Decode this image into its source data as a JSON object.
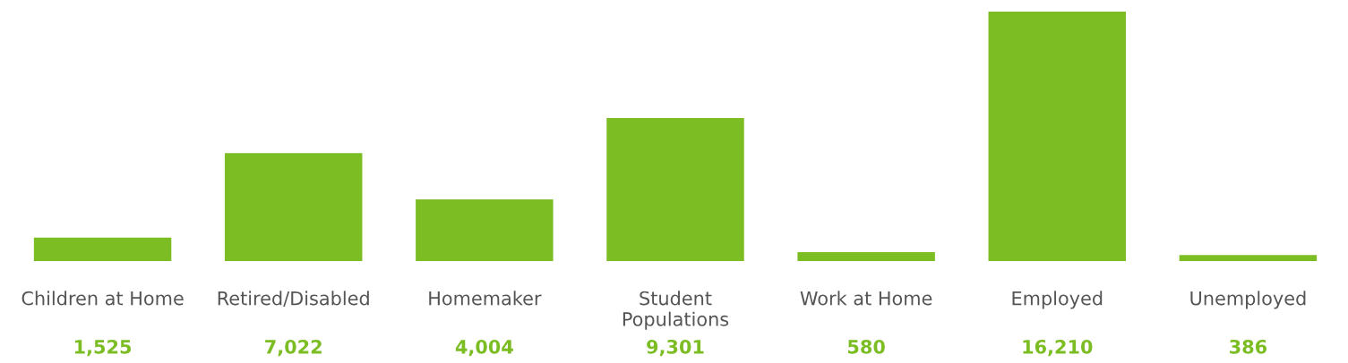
{
  "chart_data": {
    "type": "bar",
    "categories": [
      "Children at Home",
      "Retired/Disabled",
      "Homemaker",
      "Student\nPopulations",
      "Work at Home",
      "Employed",
      "Unemployed"
    ],
    "values": [
      1525,
      7022,
      4004,
      9301,
      580,
      16210,
      386
    ],
    "color": "#7bbd22",
    "value_labels": [
      "1,525",
      "7,022",
      "4,004",
      "9,301",
      "580",
      "16,210",
      "386"
    ],
    "grid": false,
    "legend": false
  }
}
